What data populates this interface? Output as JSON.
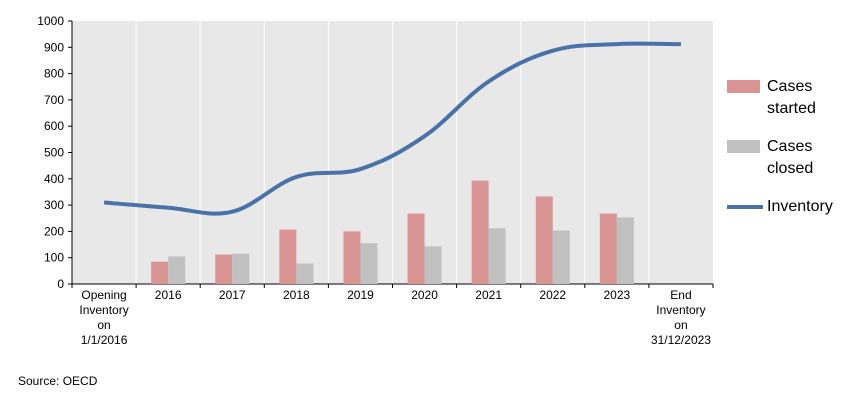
{
  "chart_data": {
    "type": "bar",
    "categories": [
      [
        "Opening",
        "Inventory",
        "on",
        "1/1/2016"
      ],
      [
        "2016"
      ],
      [
        "2017"
      ],
      [
        "2018"
      ],
      [
        "2019"
      ],
      [
        "2020"
      ],
      [
        "2021"
      ],
      [
        "2022"
      ],
      [
        "2023"
      ],
      [
        "End",
        "Inventory",
        "on",
        "31/12/2023"
      ]
    ],
    "series": [
      {
        "name": "Cases started",
        "type": "bar",
        "color": "#d99594",
        "values": [
          null,
          85,
          112,
          207,
          200,
          268,
          393,
          333,
          268,
          null
        ]
      },
      {
        "name": "Cases closed",
        "type": "bar",
        "color": "#c0c0c0",
        "values": [
          null,
          105,
          115,
          78,
          155,
          143,
          212,
          203,
          253,
          null
        ]
      },
      {
        "name": "Inventory",
        "type": "line",
        "color": "#4a72a8",
        "values": [
          310,
          290,
          275,
          407,
          437,
          562,
          770,
          887,
          912,
          912
        ]
      }
    ],
    "ylim": [
      0,
      1000
    ],
    "yticks": [
      0,
      100,
      200,
      300,
      400,
      500,
      600,
      700,
      800,
      900,
      1000
    ],
    "grid": "vertical",
    "plot_background": "#e8e8e8",
    "legend_position": "right",
    "legend": [
      {
        "lines": [
          "Cases",
          "started"
        ],
        "kind": "bar",
        "color": "#d99594"
      },
      {
        "lines": [
          "Cases",
          "closed"
        ],
        "kind": "bar",
        "color": "#c0c0c0"
      },
      {
        "lines": [
          "Inventory"
        ],
        "kind": "line",
        "color": "#4a72a8"
      }
    ]
  },
  "source": "Source: OECD"
}
